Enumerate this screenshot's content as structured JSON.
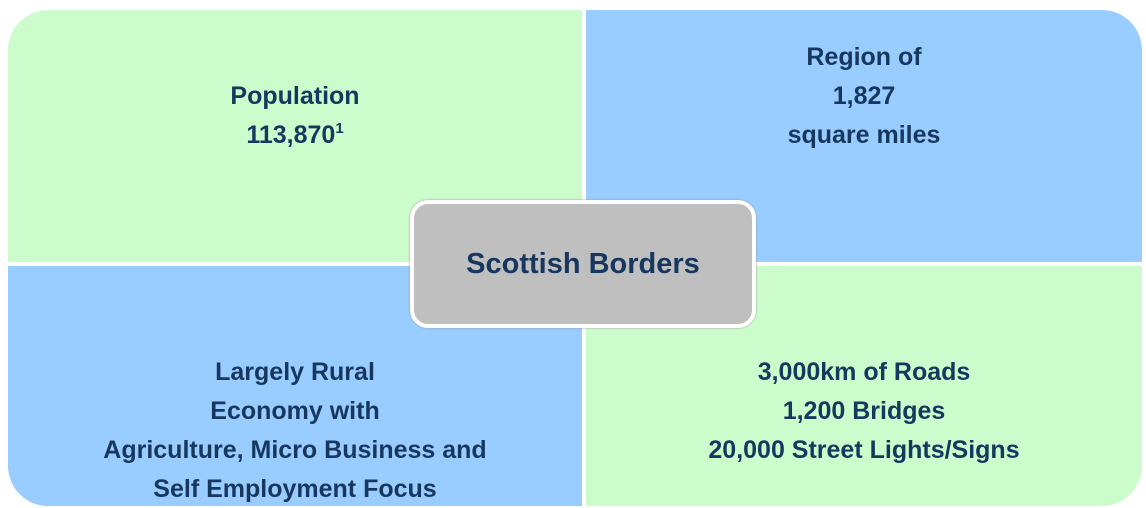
{
  "center": "Scottish Borders",
  "quadrants": [
    {
      "lines": [
        "Population",
        "113,870"
      ],
      "footnote": "1"
    },
    {
      "lines": [
        "Region of",
        "1,827",
        "square miles"
      ]
    },
    {
      "lines": [
        "Largely Rural",
        "Economy with",
        "Agriculture, Micro Business and",
        "Self Employment Focus"
      ]
    },
    {
      "lines": [
        "3,000km of Roads",
        "1,200 Bridges",
        "20,000 Street Lights/Signs"
      ]
    }
  ]
}
